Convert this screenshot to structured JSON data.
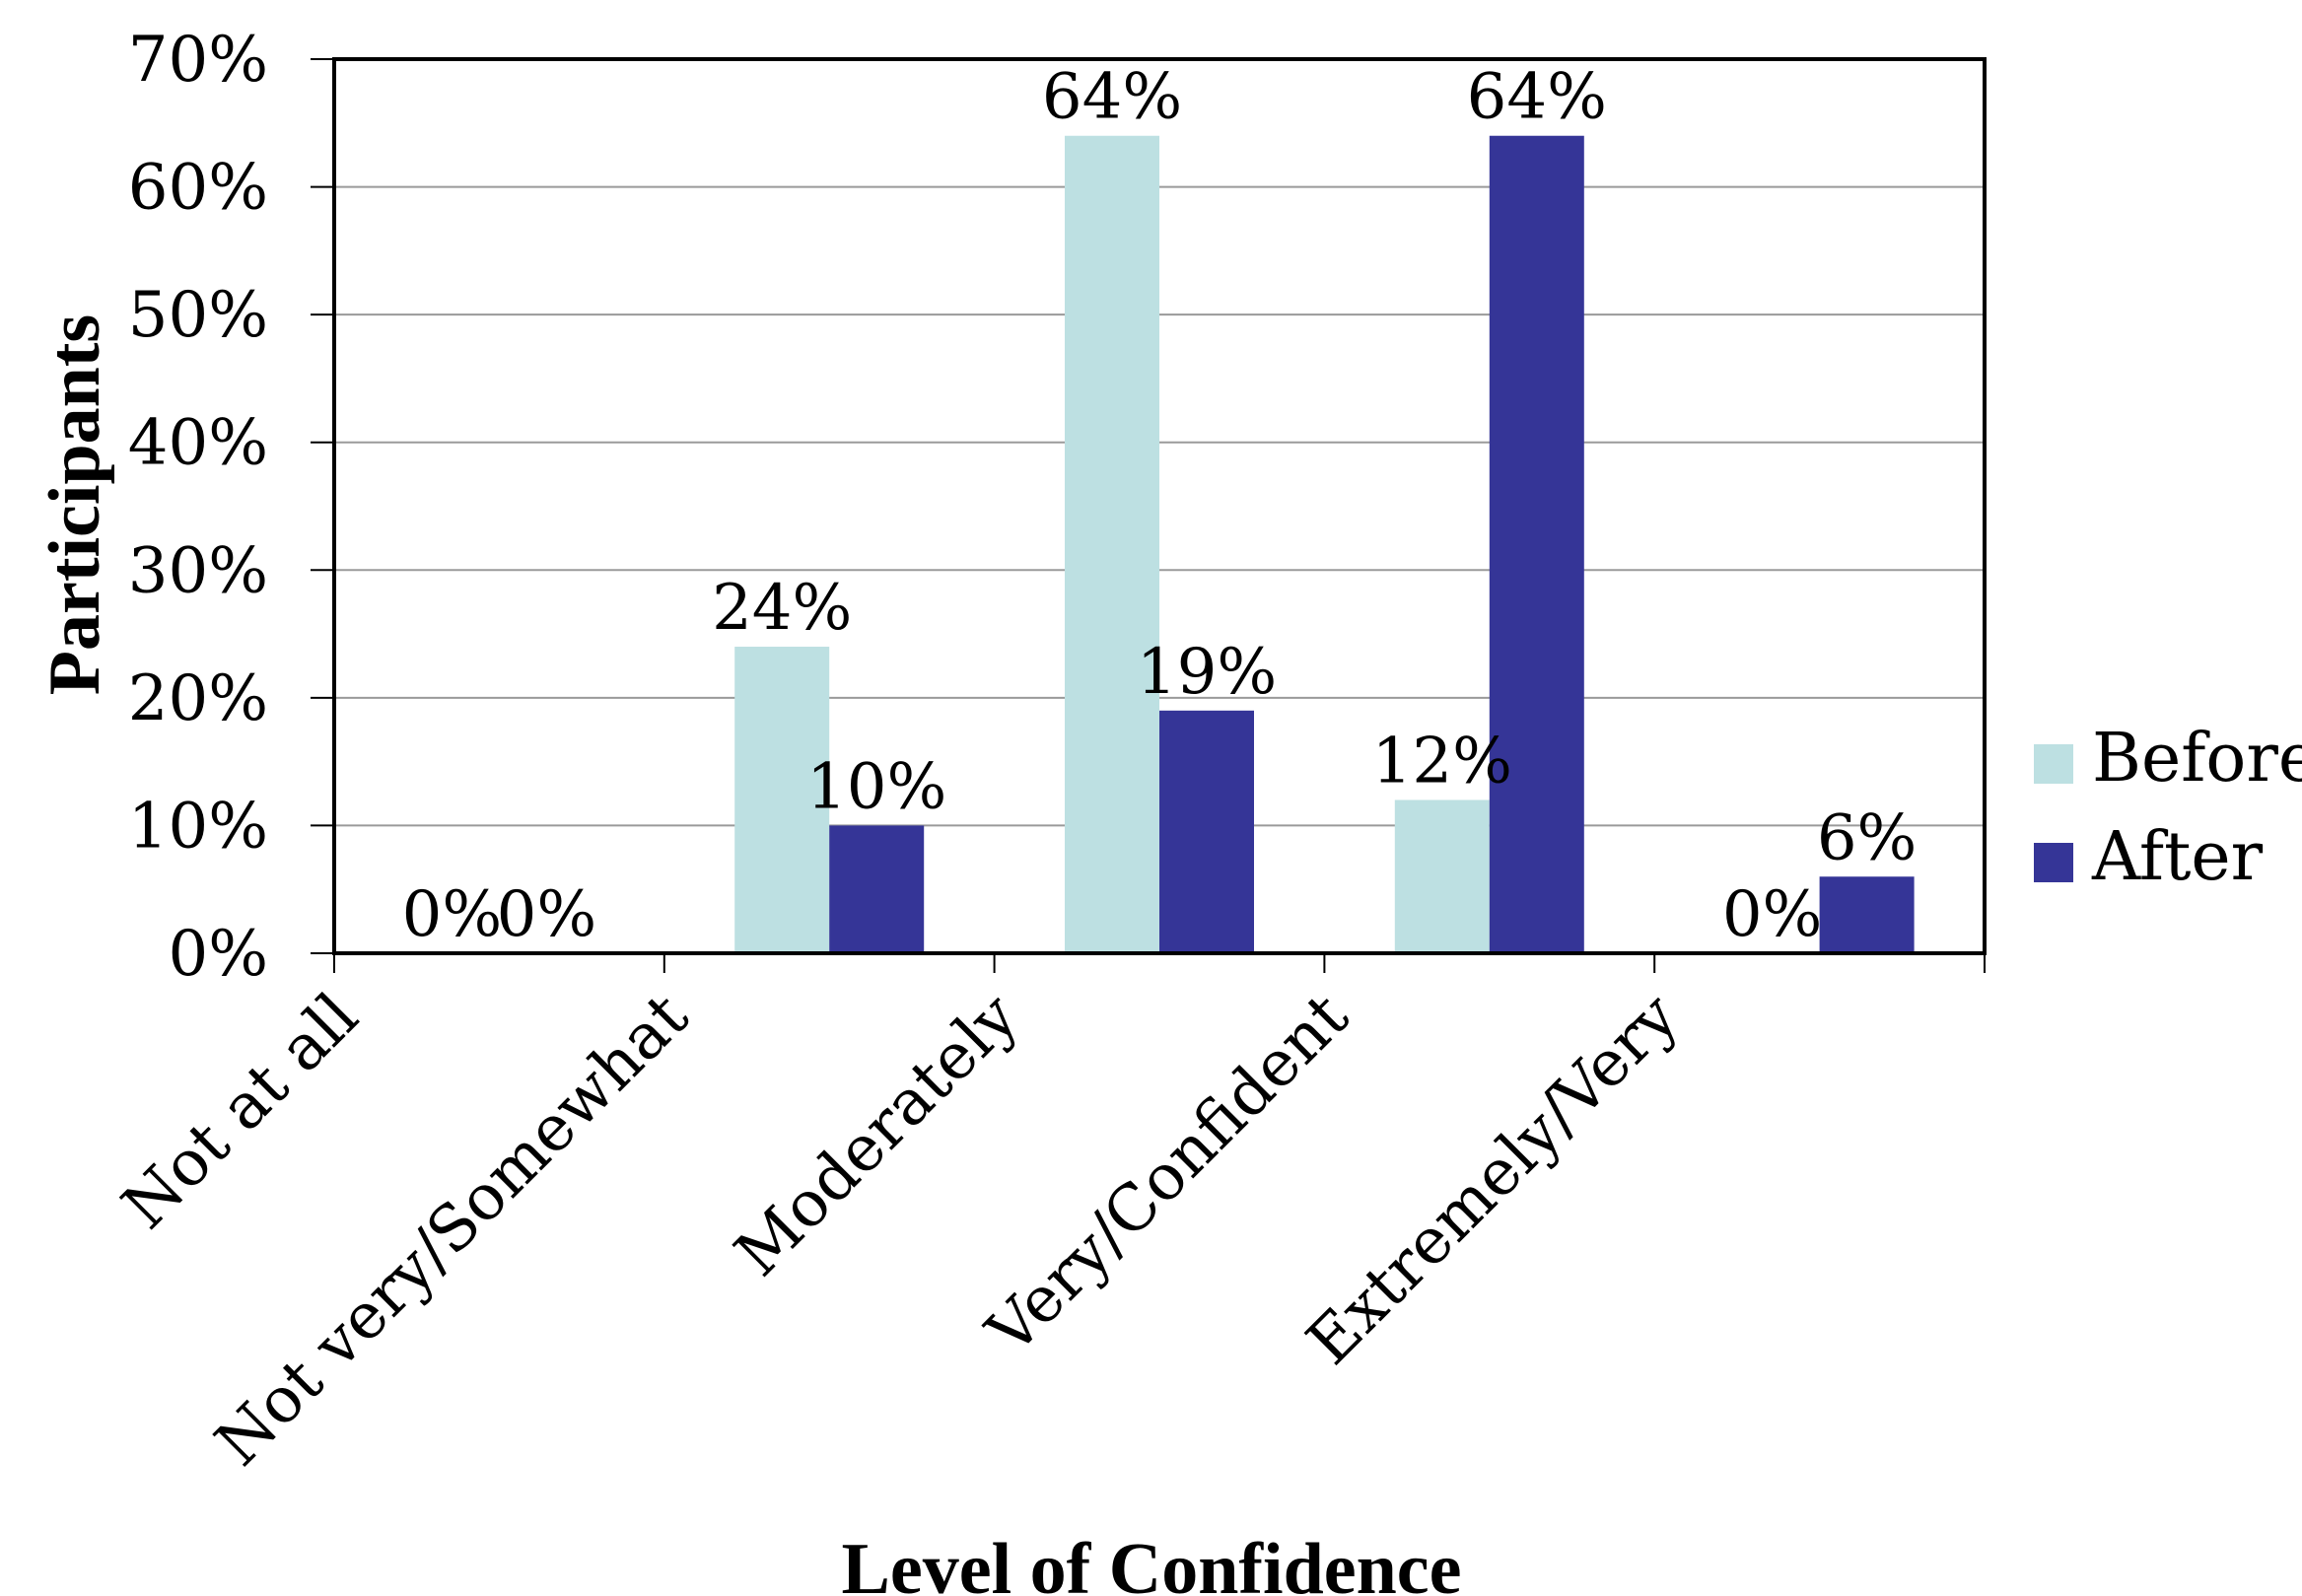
{
  "chart_data": {
    "type": "bar",
    "categories": [
      "Not at all",
      "Not very/Somewhat",
      "Moderately",
      "Very/Confident",
      "Extremely/Very"
    ],
    "series": [
      {
        "name": "Before",
        "values": [
          0,
          24,
          64,
          12,
          0
        ],
        "labels": [
          "0%",
          "24%",
          "64%",
          "12%",
          "0%"
        ]
      },
      {
        "name": "After",
        "values": [
          0,
          10,
          19,
          64,
          6
        ],
        "labels": [
          "0%",
          "10%",
          "19%",
          "64%",
          "6%"
        ]
      }
    ],
    "colors": {
      "Before": "#bde0e2",
      "After": "#353597"
    },
    "xlabel": "Level of Confidence",
    "ylabel": "Participants",
    "ylim": [
      0,
      70
    ],
    "yticks": [
      0,
      10,
      20,
      30,
      40,
      50,
      60,
      70
    ],
    "ytick_labels": [
      "0%",
      "10%",
      "20%",
      "30%",
      "40%",
      "50%",
      "60%",
      "70%"
    ],
    "grid": true,
    "legend_position": "right"
  }
}
